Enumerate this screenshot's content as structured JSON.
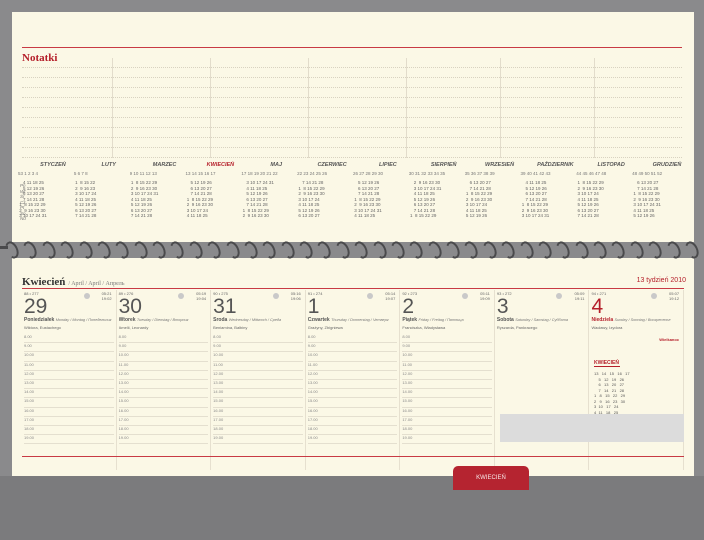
{
  "notes": {
    "title": "Notatki"
  },
  "year_months": [
    {
      "name": "STYCZEŃ",
      "weeks": "53 1 2 3 4",
      "grid": "    4 11 18 25\n    5 12 19 26\n    6 13 20 27\n    7 14 21 28\n 1  8 15 22 29\n 2  9 16 23 30\n 3 10 17 24 31",
      "red": false
    },
    {
      "name": "LUTY",
      "weeks": "5 6 7 8",
      "grid": " 1  8 15 22\n 2  9 16 23\n 3 10 17 24\n 4 11 18 25\n 5 12 19 26\n 6 13 20 27\n 7 14 21 28",
      "red": false
    },
    {
      "name": "MARZEC",
      "weeks": "9 10 11 12 13",
      "grid": " 1  8 15 22 29\n 2  9 16 23 30\n 3 10 17 24 31\n 4 11 18 25\n 5 12 19 26\n 6 13 20 27\n 7 14 21 28",
      "red": false
    },
    {
      "name": "KWIECIEŃ",
      "weeks": "13 14 15 16 17",
      "grid": "    5 12 19 26\n    6 13 20 27\n    7 14 21 28\n 1  8 15 22 29\n 2  9 16 23 30\n 3 10 17 24\n 4 11 18 25",
      "red": true
    },
    {
      "name": "MAJ",
      "weeks": "17 18 19 20 21 22",
      "grid": "    3 10 17 24 31\n    4 11 18 25\n    5 12 19 26\n    6 13 20 27\n    7 14 21 28\n 1  8 15 22 29\n 2  9 16 23 30",
      "red": false
    },
    {
      "name": "CZERWIEC",
      "weeks": "22 23 24 25 26",
      "grid": "    7 14 21 28\n 1  8 15 22 29\n 2  9 16 23 30\n 3 10 17 24\n 4 11 18 25\n 5 12 19 26\n 6 13 20 27",
      "red": false
    },
    {
      "name": "LIPIEC",
      "weeks": "26 27 28 29 30",
      "grid": "    5 12 19 26\n    6 13 20 27\n    7 14 21 28\n 1  8 15 22 29\n 2  9 16 23 30\n 3 10 17 24 31\n 4 11 18 25",
      "red": false
    },
    {
      "name": "SIERPIEŃ",
      "weeks": "30 31 32 33 34 35",
      "grid": "    2  9 16 23 30\n    3 10 17 24 31\n    4 11 18 25\n    5 12 19 26\n    6 13 20 27\n    7 14 21 28\n 1  8 15 22 29",
      "red": false
    },
    {
      "name": "WRZESIEŃ",
      "weeks": "35 36 37 38 39",
      "grid": "    6 13 20 27\n    7 14 21 28\n 1  8 15 22 29\n 2  9 16 23 30\n 3 10 17 24\n 4 11 18 25\n 5 12 19 26",
      "red": false
    },
    {
      "name": "PAŹDZIERNIK",
      "weeks": "39 40 41 42 43",
      "grid": "    4 11 18 25\n    5 12 19 26\n    6 13 20 27\n    7 14 21 28\n 1  8 15 22 29\n 2  9 16 23 30\n 3 10 17 24 31",
      "red": false
    },
    {
      "name": "LISTOPAD",
      "weeks": "44 45 46 47 48",
      "grid": " 1  8 15 22 29\n 2  9 16 23 30\n 3 10 17 24\n 4 11 18 25\n 5 12 19 26\n 6 13 20 27\n 7 14 21 28",
      "red": false
    },
    {
      "name": "GRUDZIEŃ",
      "weeks": "48 49 50 51 52",
      "grid": "    6 13 20 27\n    7 14 21 28\n 1  8 15 22 29\n 2  9 16 23 30\n 3 10 17 24 31\n 4 11 18 25\n 5 12 19 26",
      "red": false
    }
  ],
  "day_labels": "Pn\nWt\nŚr\nCz\nPt\nSo\nNd",
  "week": {
    "month_title": "Kwiecień",
    "month_sub": "/ April / April / Апрель",
    "week_label": "13 tydzień 2010"
  },
  "days": [
    {
      "meta": "88 • 277",
      "sun": "05:21\n19:02",
      "num": "29",
      "dname": "Poniedziałek",
      "dname_sub": "Monday / Montag / Понедельник",
      "names": "Wiktora, Eustachego"
    },
    {
      "meta": "89 • 276",
      "sun": "05:19\n19:04",
      "num": "30",
      "dname": "Wtorek",
      "dname_sub": "Tuesday / Dienstag / Вторник",
      "names": "Amelii, Leonardy"
    },
    {
      "meta": "90 • 275",
      "sun": "05:16\n19:06",
      "num": "31",
      "dname": "Środa",
      "dname_sub": "Wednesday / Mittwoch / Среда",
      "names": "Beniamina, Balbiny"
    },
    {
      "meta": "91 • 274",
      "sun": "05:14\n19:07",
      "num": "1",
      "dname": "Czwartek",
      "dname_sub": "Thursday / Donnerstag / Четверг",
      "names": "Grażyny, Zbigniewa"
    },
    {
      "meta": "92 • 273",
      "sun": "05:11\n19:09",
      "num": "2",
      "dname": "Piątek",
      "dname_sub": "Friday / Freitag / Пятница",
      "names": "Franciszka, Władysława"
    },
    {
      "meta": "93 • 272",
      "sun": "05:09\n19:11",
      "num": "3",
      "dname": "Sobota",
      "dname_sub": "Saturday / Samstag / Суббота",
      "names": "Ryszarda, Pankracego"
    },
    {
      "meta": "94 • 271",
      "sun": "05:07\n19:12",
      "num": "4",
      "dname": "Niedziela",
      "dname_sub": "Sunday / Sonntag / Воскресенье",
      "names": "Wacławy, Izydora",
      "extra": "Wielkanoc"
    }
  ],
  "hours": [
    "8.00",
    "9.00",
    "10.00",
    "11.00",
    "12.00",
    "13.00",
    "14.00",
    "15.00",
    "16.00",
    "17.00",
    "18.00",
    "19.00"
  ],
  "mini_cal": {
    "title": "KWIECIEŃ",
    "grid": "13   14   15   16   17\n    5   12   19   26\n    6   13   20   27\n    7   14   21   28\n1   8   15   22   29\n2   9   16   23   30\n3  10   17   24\n4  11   18   25"
  },
  "tab": {
    "label": "KWIECIEŃ"
  }
}
